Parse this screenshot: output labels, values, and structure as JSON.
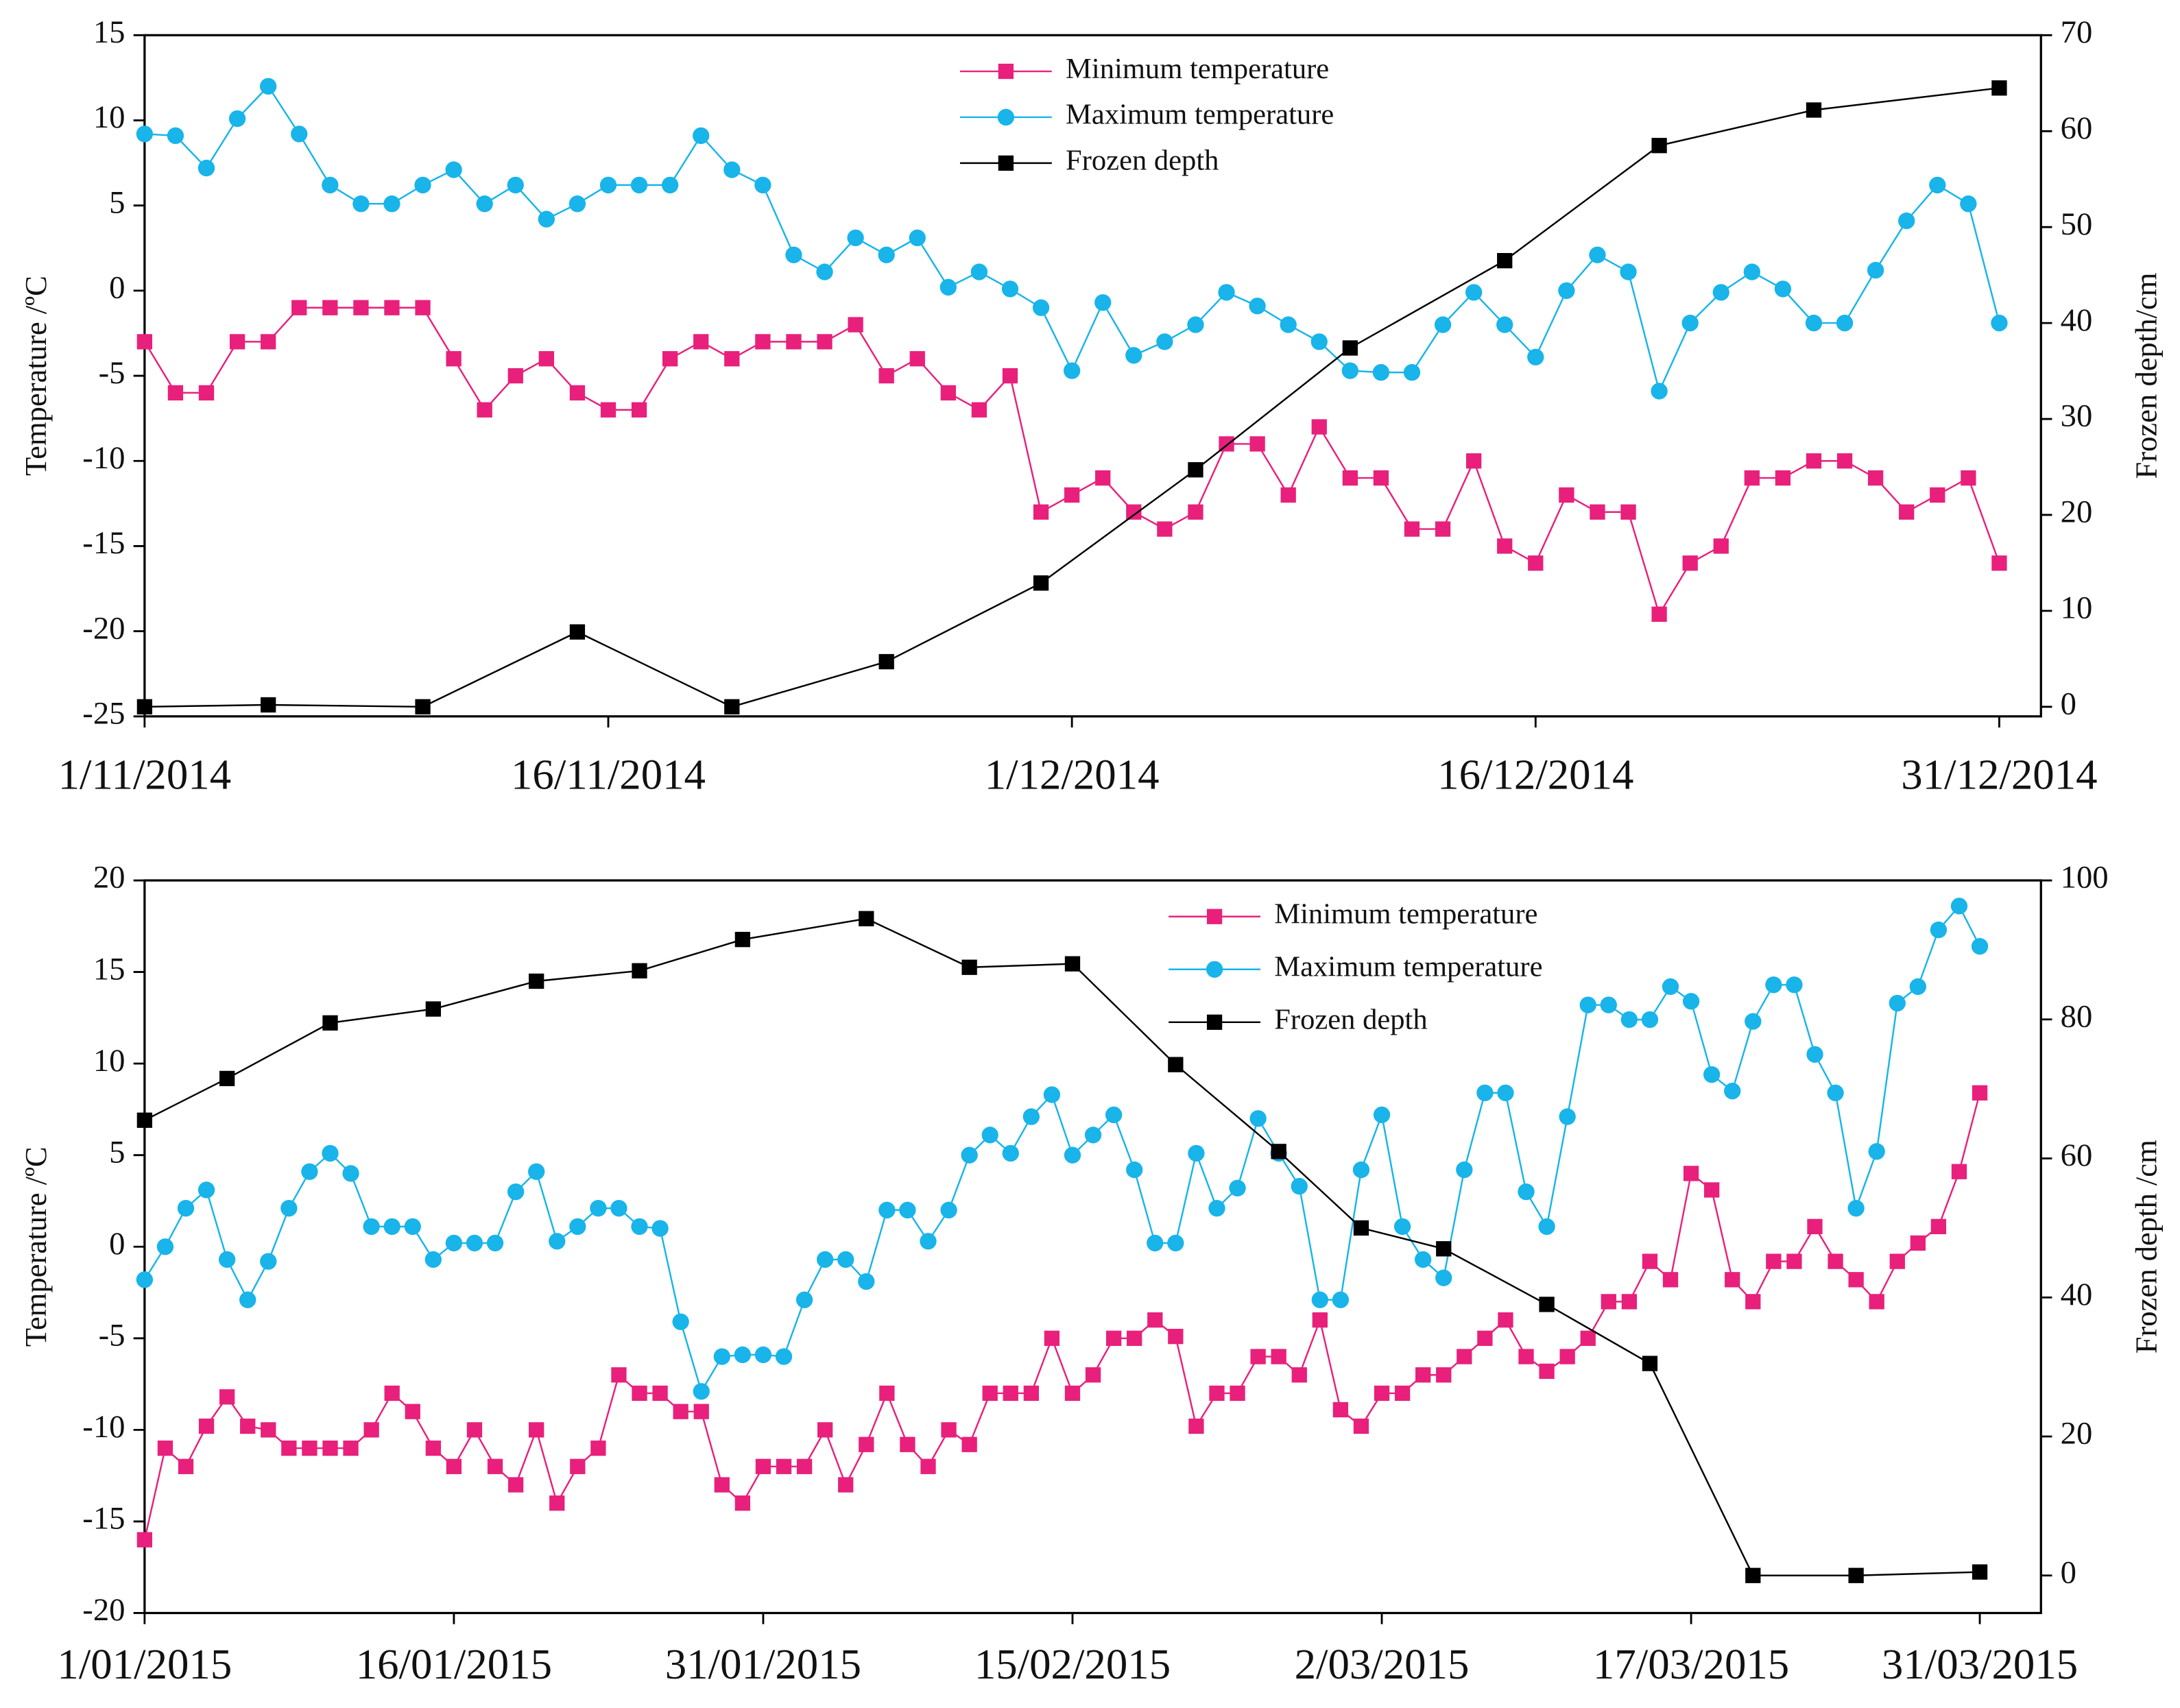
{
  "chart_data": [
    {
      "type": "line",
      "y_label": "Temperature /ºC",
      "y2_label": "Frozen depth/cm",
      "xlim": [
        "1/11/2014",
        "31/12/2014"
      ],
      "xticks": [
        "1/11/2014",
        "16/11/2014",
        "1/12/2014",
        "16/12/2014",
        "31/12/2014"
      ],
      "ylim": [
        -25,
        15
      ],
      "yticks": [
        15,
        10,
        5,
        0,
        -5,
        -10,
        -15,
        -20,
        -25
      ],
      "y2lim": [
        -1,
        70
      ],
      "y2ticks": [
        0,
        10,
        20,
        30,
        40,
        50,
        60,
        70
      ],
      "legend": "upper center",
      "x": [
        "1/11/2014",
        "2/11/2014",
        "3/11/2014",
        "4/11/2014",
        "5/11/2014",
        "6/11/2014",
        "7/11/2014",
        "8/11/2014",
        "9/11/2014",
        "10/11/2014",
        "11/11/2014",
        "12/11/2014",
        "13/11/2014",
        "14/11/2014",
        "15/11/2014",
        "16/11/2014",
        "17/11/2014",
        "18/11/2014",
        "19/11/2014",
        "20/11/2014",
        "21/11/2014",
        "22/11/2014",
        "23/11/2014",
        "24/11/2014",
        "25/11/2014",
        "26/11/2014",
        "27/11/2014",
        "28/11/2014",
        "29/11/2014",
        "30/11/2014",
        "1/12/2014",
        "2/12/2014",
        "3/12/2014",
        "4/12/2014",
        "5/12/2014",
        "6/12/2014",
        "7/12/2014",
        "8/12/2014",
        "9/12/2014",
        "10/12/2014",
        "11/12/2014",
        "12/12/2014",
        "13/12/2014",
        "14/12/2014",
        "15/12/2014",
        "16/12/2014",
        "17/12/2014",
        "18/12/2014",
        "19/12/2014",
        "20/12/2014",
        "21/12/2014",
        "22/12/2014",
        "23/12/2014",
        "24/12/2014",
        "25/12/2014",
        "26/12/2014",
        "27/12/2014",
        "28/12/2014",
        "29/12/2014",
        "30/12/2014",
        "31/12/2014"
      ],
      "series": [
        {
          "name": "Minimum temperature",
          "color": "#e8207c",
          "marker": "square",
          "values": [
            -3,
            -6,
            -6,
            -3,
            -3,
            -1,
            -1,
            -1,
            -1,
            -1,
            -4,
            -7,
            -5,
            -4,
            -6,
            -7,
            -7,
            -4,
            -3,
            -4,
            -3,
            -3,
            -3,
            -2,
            -5,
            -4,
            -6,
            -7,
            -5,
            -13,
            -12,
            -11,
            -13,
            -14,
            -13,
            -9,
            -9,
            -12,
            -8,
            -11,
            -11,
            -14,
            -14,
            -10,
            -15,
            -16,
            -12,
            -13,
            -13,
            -19,
            -16,
            -15,
            -11,
            -11,
            -10,
            -10,
            -11,
            -13,
            -12,
            -11,
            -16
          ]
        },
        {
          "name": "Maximum temperature",
          "color": "#18b4ea",
          "marker": "circle",
          "values": [
            9.2,
            9.1,
            7.2,
            10.1,
            12,
            9.2,
            6.2,
            5.1,
            5.1,
            6.2,
            7.1,
            5.1,
            6.2,
            4.2,
            5.1,
            6.2,
            6.2,
            6.2,
            9.1,
            7.1,
            6.2,
            2.1,
            1.1,
            3.1,
            2.1,
            3.1,
            0.2,
            1.1,
            0.1,
            -1,
            -4.7,
            -0.7,
            -3.8,
            -3,
            -2,
            -0.1,
            -0.9,
            -2,
            -3,
            -4.7,
            -4.8,
            -4.8,
            -2,
            -0.1,
            -2,
            -3.9,
            0,
            2.1,
            1.1,
            -5.9,
            -1.9,
            -0.1,
            1.1,
            0.1,
            -1.9,
            -1.9,
            1.2,
            4.1,
            6.2,
            5.1,
            -1.9
          ]
        },
        {
          "name": "Frozen depth",
          "color": "#000000",
          "marker": "square",
          "axis": "y2",
          "x": [
            "1/11/2014",
            "5/11/2014",
            "10/11/2014",
            "15/11/2014",
            "20/11/2014",
            "25/11/2014",
            "30/11/2014",
            "5/12/2014",
            "10/12/2014",
            "15/12/2014",
            "20/12/2014",
            "25/12/2014",
            "31/12/2014"
          ],
          "values": [
            0,
            0.2,
            0,
            7.8,
            0,
            4.7,
            12.9,
            24.7,
            37.4,
            46.5,
            58.5,
            62.2,
            64.5
          ]
        }
      ]
    },
    {
      "type": "line",
      "y_label": "Temperature /ºC",
      "y2_label": "Frozen depth /cm",
      "xlim": [
        "1/01/2015",
        "31/03/2015"
      ],
      "xticks": [
        "1/01/2015",
        "16/01/2015",
        "31/01/2015",
        "15/02/2015",
        "2/03/2015",
        "17/03/2015",
        "31/03/2015"
      ],
      "ylim": [
        -20,
        20
      ],
      "yticks": [
        20,
        15,
        10,
        5,
        0,
        -5,
        -10,
        -15,
        -20
      ],
      "y2lim": [
        -5.4,
        100
      ],
      "y2ticks": [
        0,
        20,
        40,
        60,
        80,
        100
      ],
      "legend": "upper right",
      "x": [
        "1/01/2015",
        "2/01/2015",
        "3/01/2015",
        "4/01/2015",
        "5/01/2015",
        "6/01/2015",
        "7/01/2015",
        "8/01/2015",
        "9/01/2015",
        "10/01/2015",
        "11/01/2015",
        "12/01/2015",
        "13/01/2015",
        "14/01/2015",
        "15/01/2015",
        "16/01/2015",
        "17/01/2015",
        "18/01/2015",
        "19/01/2015",
        "20/01/2015",
        "21/01/2015",
        "22/01/2015",
        "23/01/2015",
        "24/01/2015",
        "25/01/2015",
        "26/01/2015",
        "27/01/2015",
        "28/01/2015",
        "29/01/2015",
        "30/01/2015",
        "31/01/2015",
        "1/02/2015",
        "2/02/2015",
        "3/02/2015",
        "4/02/2015",
        "5/02/2015",
        "6/02/2015",
        "7/02/2015",
        "8/02/2015",
        "9/02/2015",
        "10/02/2015",
        "11/02/2015",
        "12/02/2015",
        "13/02/2015",
        "14/02/2015",
        "15/02/2015",
        "16/02/2015",
        "17/02/2015",
        "18/02/2015",
        "19/02/2015",
        "20/02/2015",
        "21/02/2015",
        "22/02/2015",
        "23/02/2015",
        "24/02/2015",
        "25/02/2015",
        "26/02/2015",
        "27/02/2015",
        "28/02/2015",
        "1/03/2015",
        "2/03/2015",
        "3/03/2015",
        "4/03/2015",
        "5/03/2015",
        "6/03/2015",
        "7/03/2015",
        "8/03/2015",
        "9/03/2015",
        "10/03/2015",
        "11/03/2015",
        "12/03/2015",
        "13/03/2015",
        "14/03/2015",
        "15/03/2015",
        "16/03/2015",
        "17/03/2015",
        "18/03/2015",
        "19/03/2015",
        "20/03/2015",
        "21/03/2015",
        "22/03/2015",
        "23/03/2015",
        "24/03/2015",
        "25/03/2015",
        "26/03/2015",
        "27/03/2015",
        "28/03/2015",
        "29/03/2015",
        "30/03/2015",
        "31/03/2015"
      ],
      "series": [
        {
          "name": "Minimum temperature",
          "color": "#e8207c",
          "marker": "square",
          "values": [
            -16,
            -11,
            -12,
            -9.8,
            -8.2,
            -9.8,
            -10,
            -11,
            -11,
            -11,
            -11,
            -10,
            -8,
            -9,
            -11,
            -12,
            -10,
            -12,
            -13,
            -10,
            -14,
            -12,
            -11,
            -7,
            -8,
            -8,
            -9,
            -9,
            -13,
            -14,
            -12,
            -12,
            -12,
            -10,
            -13,
            -10.8,
            -8,
            -10.8,
            -12,
            -10,
            -10.8,
            -8,
            -8,
            -8,
            -5,
            -8,
            -7,
            -5,
            -5,
            -4,
            -4.9,
            -9.8,
            -8,
            -8,
            -6,
            -6,
            -7,
            -4,
            -8.9,
            -9.8,
            -8,
            -8,
            -7,
            -7,
            -6,
            -5,
            -4,
            -6,
            -6.8,
            -6,
            -5,
            -3,
            -3,
            -0.8,
            -1.8,
            4,
            3.1,
            -1.8,
            -3,
            -0.8,
            -0.8,
            1.1,
            -0.8,
            -1.8,
            -3,
            -0.8,
            0.2,
            1.1,
            4.1,
            8.4
          ]
        },
        {
          "name": "Maximum temperature",
          "color": "#18b4ea",
          "marker": "circle",
          "values": [
            -1.8,
            0,
            2.1,
            3.1,
            -0.7,
            -2.9,
            -0.8,
            2.1,
            4.1,
            5.1,
            4,
            1.1,
            1.1,
            1.1,
            -0.7,
            0.2,
            0.2,
            0.2,
            3,
            4.1,
            0.3,
            1.1,
            2.1,
            2.1,
            1.1,
            1,
            -4.1,
            -7.9,
            -6,
            -5.9,
            -5.9,
            -6,
            -2.9,
            -0.7,
            -0.7,
            -1.9,
            2,
            2,
            0.3,
            2,
            5,
            6.1,
            5.1,
            7.1,
            8.3,
            5,
            6.1,
            7.2,
            4.2,
            0.2,
            0.2,
            5.1,
            2.1,
            3.2,
            7,
            5.1,
            3.3,
            -2.9,
            -2.9,
            4.2,
            7.2,
            1.1,
            -0.7,
            -1.7,
            4.2,
            8.4,
            8.4,
            3,
            1.1,
            7.1,
            13.2,
            13.2,
            12.4,
            12.4,
            14.2,
            13.4,
            9.4,
            8.5,
            12.3,
            14.3,
            14.3,
            10.5,
            8.4,
            2.1,
            5.2,
            13.3,
            14.2,
            17.3,
            18.6,
            16.4
          ]
        },
        {
          "name": "Frozen depth",
          "color": "#000000",
          "marker": "square",
          "axis": "y2",
          "x": [
            "1/01/2015",
            "5/01/2015",
            "10/01/2015",
            "15/01/2015",
            "20/01/2015",
            "25/01/2015",
            "30/01/2015",
            "5/02/2015",
            "10/02/2015",
            "15/02/2015",
            "20/02/2015",
            "25/02/2015",
            "1/03/2015",
            "5/03/2015",
            "10/03/2015",
            "15/03/2015",
            "20/03/2015",
            "25/03/2015",
            "31/03/2015"
          ],
          "values": [
            65.5,
            71.5,
            79.5,
            81.5,
            85.5,
            87,
            91.5,
            94.5,
            87.5,
            88,
            73.5,
            61,
            50,
            47,
            39,
            30.5,
            0,
            0,
            0.5
          ]
        }
      ]
    }
  ]
}
